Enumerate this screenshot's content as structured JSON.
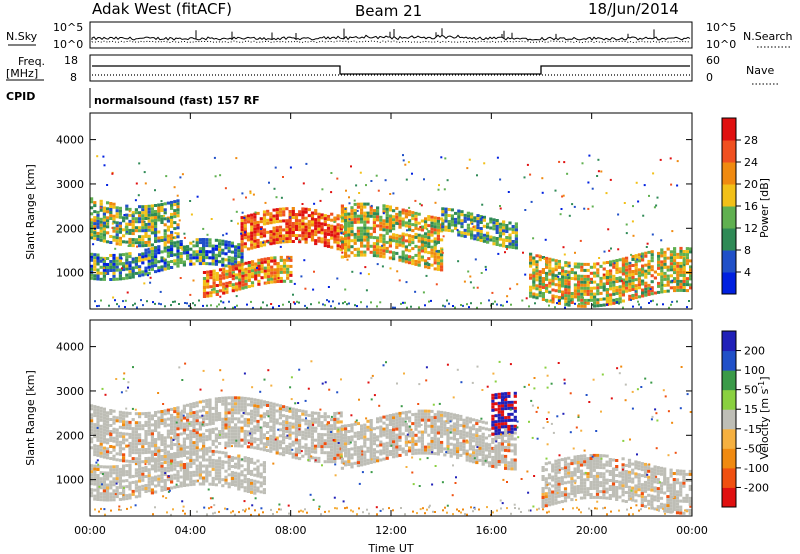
{
  "header": {
    "station": "Adak West (fitACF)",
    "beam": "Beam 21",
    "date": "18/Jun/2014"
  },
  "top_panels": {
    "nsky_label": "N.Sky",
    "nsky_top_tick": "10^5",
    "nsky_bottom_tick": "10^0",
    "nsearch_label": "N.Search",
    "nsearch_top_tick": "10^5",
    "nsearch_bottom_tick": "10^0",
    "freq_label": "Freq.",
    "freq_unit": "[MHz]",
    "freq_ticks": [
      "18",
      "8"
    ],
    "nave_label": "Nave",
    "nave_ticks": [
      "60",
      "0"
    ],
    "cpid_label": "CPID",
    "cpid_text": "normalsound (fast) 157 RF"
  },
  "colors": {
    "power_scale": [
      "#0020e0",
      "#2050c8",
      "#2f8a56",
      "#60b050",
      "#f2c018",
      "#f08a10",
      "#f05020",
      "#e01010"
    ],
    "velocity_scale": [
      "#e01010",
      "#f05010",
      "#f08a10",
      "#f5b040",
      "#bebeb6",
      "#8ad040",
      "#3a9a48",
      "#2050c8",
      "#2020b8"
    ],
    "ground_scatter": "#bebeb6"
  },
  "chart_data": [
    {
      "type": "heatmap",
      "title": "Power",
      "ylabel": "Slant Range [km]",
      "xlabel": "",
      "xlim": [
        0,
        24
      ],
      "ylim": [
        180,
        4600
      ],
      "yticks": [
        "4000",
        "3000",
        "2000",
        "1000"
      ],
      "ytick_values": [
        4000,
        3000,
        2000,
        1000
      ],
      "colorbar": {
        "label": "Power [dB]",
        "ticks": [
          "28",
          "24",
          "20",
          "16",
          "12",
          "8",
          "4"
        ],
        "range": [
          0,
          32
        ]
      },
      "regions": [
        {
          "x": [
            0.0,
            3.5
          ],
          "range": [
            1800,
            2700
          ],
          "value": 14
        },
        {
          "x": [
            0.0,
            6.0
          ],
          "range": [
            1000,
            1600
          ],
          "value": 10
        },
        {
          "x": [
            4.5,
            8.0
          ],
          "range": [
            600,
            1200
          ],
          "value": 22
        },
        {
          "x": [
            6.0,
            10.0
          ],
          "range": [
            1500,
            2300
          ],
          "value": 26
        },
        {
          "x": [
            10.0,
            14.0
          ],
          "range": [
            1200,
            2400
          ],
          "value": 18
        },
        {
          "x": [
            14.0,
            17.0
          ],
          "range": [
            1700,
            2300
          ],
          "value": 12
        },
        {
          "x": [
            17.5,
            24.0
          ],
          "range": [
            400,
            1400
          ],
          "value": 18
        }
      ]
    },
    {
      "type": "heatmap",
      "title": "Velocity",
      "ylabel": "Slant Range [km]",
      "xlabel": "Time UT",
      "xlim": [
        0,
        24
      ],
      "ylim": [
        180,
        4600
      ],
      "xticks": [
        "00:00",
        "04:00",
        "08:00",
        "12:00",
        "16:00",
        "20:00",
        "00:00"
      ],
      "xtick_values": [
        0,
        4,
        8,
        12,
        16,
        20,
        24
      ],
      "yticks": [
        "4000",
        "3000",
        "2000",
        "1000"
      ],
      "ytick_values": [
        4000,
        3000,
        2000,
        1000
      ],
      "colorbar": {
        "label": "Velocity [m s",
        "label_sup": "-1",
        "label_end": "]",
        "ticks": [
          "200",
          "100",
          "50",
          "15",
          "-15",
          "-50",
          "-100",
          "-200"
        ]
      },
      "regions": [
        {
          "x": [
            0.0,
            10.0
          ],
          "range": [
            1600,
            2700
          ],
          "value": 0
        },
        {
          "x": [
            0.0,
            7.0
          ],
          "range": [
            700,
            1500
          ],
          "value": 0
        },
        {
          "x": [
            10.0,
            17.0
          ],
          "range": [
            1400,
            2400
          ],
          "value": 0
        },
        {
          "x": [
            18.0,
            24.0
          ],
          "range": [
            400,
            1400
          ],
          "value": 0
        },
        {
          "x": [
            16.0,
            17.0
          ],
          "range": [
            1900,
            2800
          ],
          "value": 150
        }
      ]
    }
  ]
}
